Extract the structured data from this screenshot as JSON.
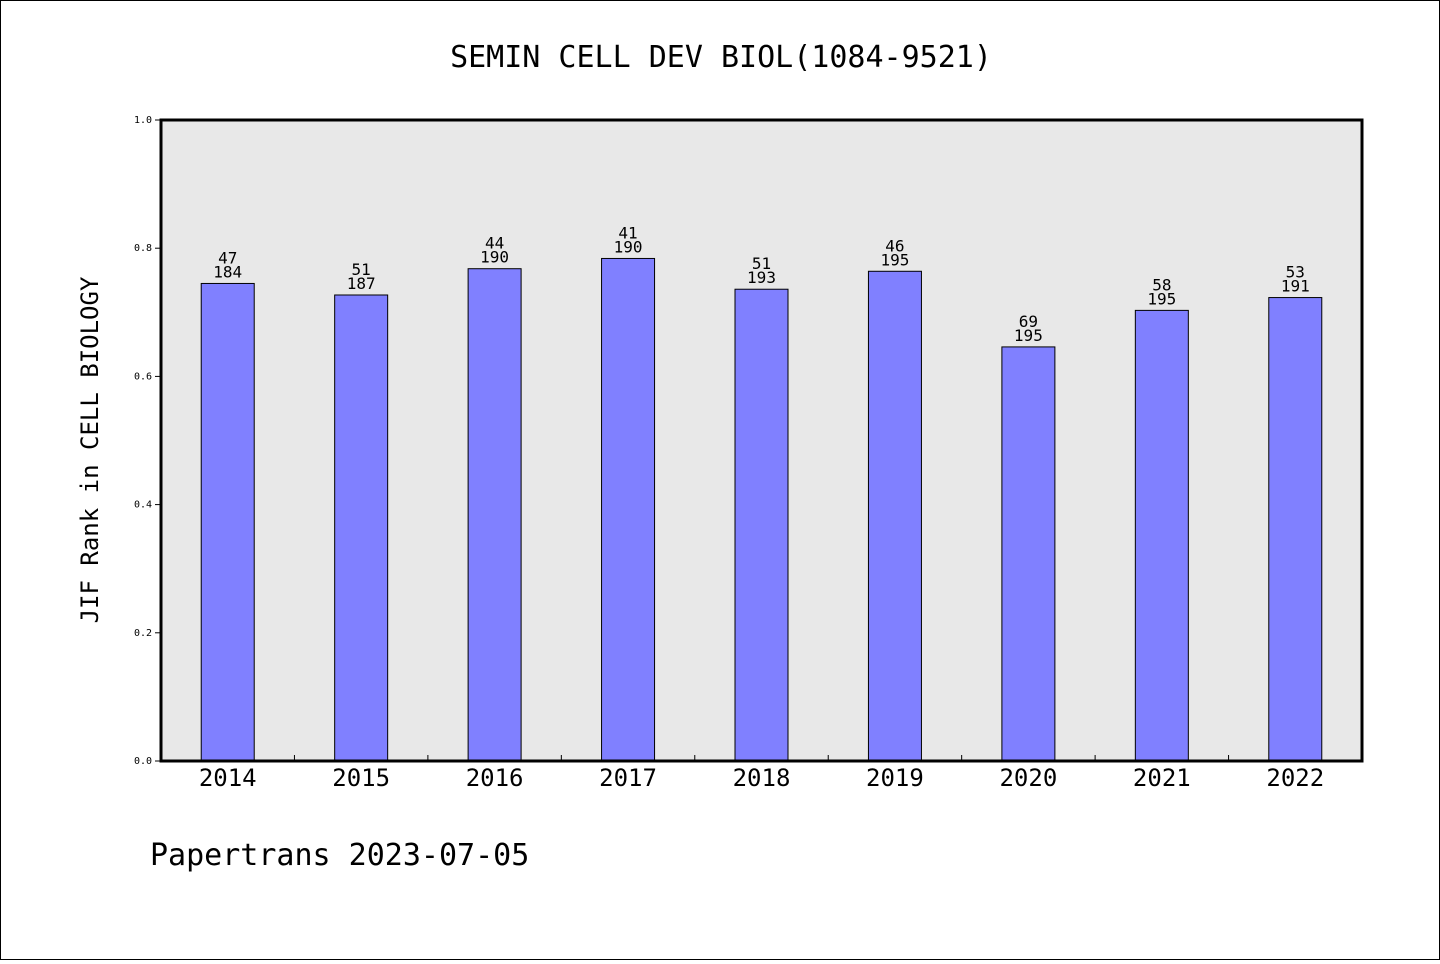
{
  "chart_data": {
    "type": "bar",
    "title": "SEMIN CELL DEV BIOL(1084-9521)",
    "xlabel": "",
    "ylabel": "JIF Rank in CELL BIOLOGY",
    "ylim": [
      0,
      1.0
    ],
    "yticks": [
      "0.0",
      "0.2",
      "0.4",
      "0.6",
      "0.8",
      "1.0"
    ],
    "categories": [
      "2014",
      "2015",
      "2016",
      "2017",
      "2018",
      "2019",
      "2020",
      "2021",
      "2022"
    ],
    "values": [
      0.745,
      0.727,
      0.768,
      0.784,
      0.736,
      0.764,
      0.646,
      0.703,
      0.723
    ],
    "rank_labels": [
      "47",
      "51",
      "44",
      "41",
      "51",
      "46",
      "69",
      "58",
      "53"
    ],
    "total_labels": [
      "184",
      "187",
      "190",
      "190",
      "193",
      "195",
      "195",
      "195",
      "191"
    ],
    "grid": false,
    "bar_color": "#8080ff",
    "plot_background": "#e8e8e8"
  },
  "footer": {
    "text": "Papertrans 2023-07-05"
  }
}
